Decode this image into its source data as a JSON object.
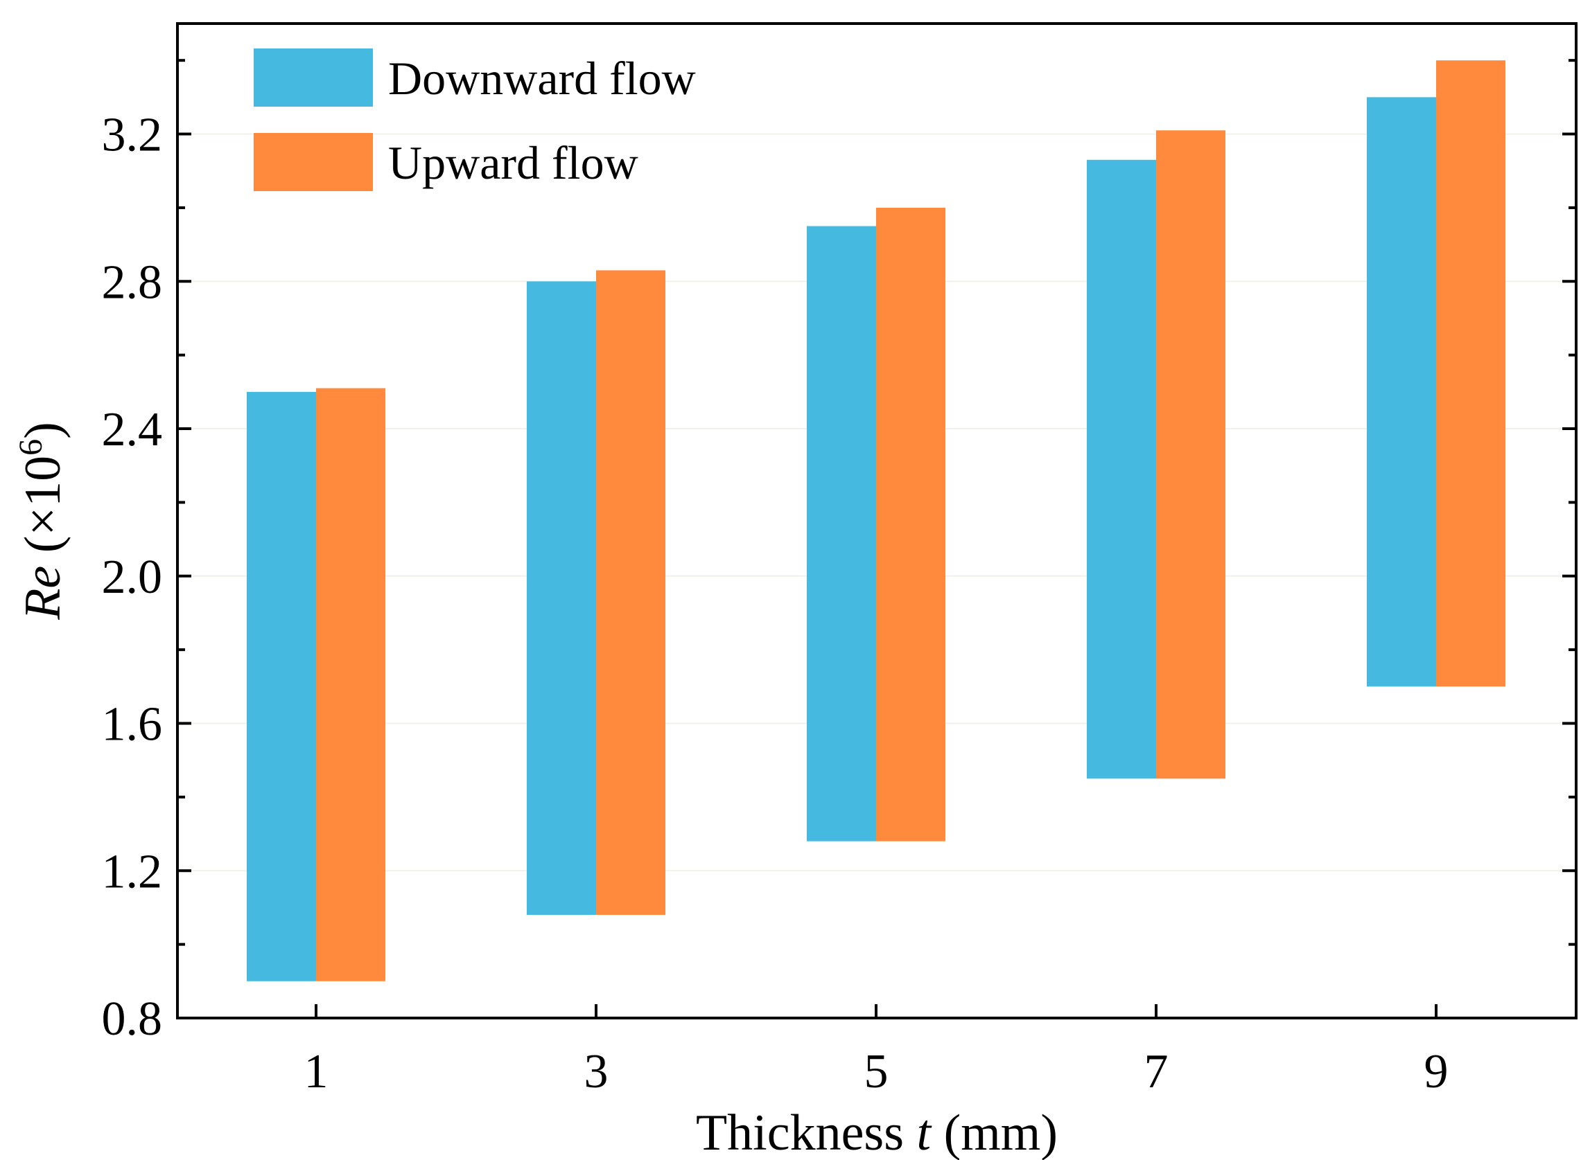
{
  "chart_data": {
    "type": "bar",
    "subtype": "floating-range",
    "title": "",
    "xlabel_prefix": "Thickness ",
    "xlabel_var": "t",
    "xlabel_suffix": " (mm)",
    "ylabel_var": "Re",
    "ylabel_unit_prefix": " (×10",
    "ylabel_unit_exp": "6",
    "ylabel_unit_suffix": ")",
    "categories": [
      "1",
      "3",
      "5",
      "7",
      "9"
    ],
    "ylim": [
      0.8,
      3.5
    ],
    "yticks": [
      "0.8",
      "1.2",
      "1.6",
      "2.0",
      "2.4",
      "2.8",
      "3.2"
    ],
    "grid": "horizontal-faint",
    "legend_position": "top-left",
    "series": [
      {
        "name": "Downward flow",
        "color": "#45B9DF",
        "low": [
          0.9,
          1.08,
          1.28,
          1.45,
          1.7
        ],
        "high": [
          2.5,
          2.8,
          2.95,
          3.13,
          3.3
        ]
      },
      {
        "name": "Upward flow",
        "color": "#FF8A3D",
        "low": [
          0.9,
          1.08,
          1.28,
          1.45,
          1.7
        ],
        "high": [
          2.51,
          2.83,
          3.0,
          3.21,
          3.4
        ]
      }
    ]
  }
}
